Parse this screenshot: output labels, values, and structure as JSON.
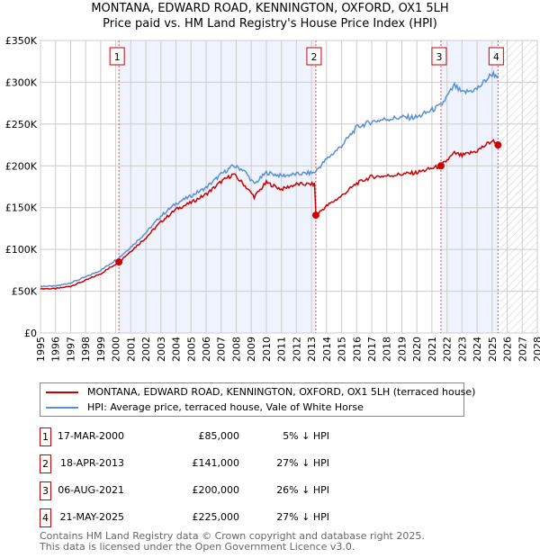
{
  "chart_data": {
    "type": "line",
    "title": "MONTANA, EDWARD ROAD, KENNINGTON, OXFORD, OX1 5LH",
    "subtitle": "Price paid vs. HM Land Registry's House Price Index (HPI)",
    "xlim": [
      1995,
      2028
    ],
    "ylim": [
      0,
      350000
    ],
    "x_ticks": [
      "1995",
      "1996",
      "1997",
      "1998",
      "1999",
      "2000",
      "2001",
      "2002",
      "2003",
      "2004",
      "2005",
      "2006",
      "2007",
      "2008",
      "2009",
      "2010",
      "2011",
      "2012",
      "2013",
      "2014",
      "2015",
      "2016",
      "2017",
      "2018",
      "2019",
      "2020",
      "2021",
      "2022",
      "2023",
      "2024",
      "2025",
      "2026",
      "2027",
      "2028"
    ],
    "y_ticks": [
      {
        "v": 0,
        "label": "£0"
      },
      {
        "v": 50000,
        "label": "£50K"
      },
      {
        "v": 100000,
        "label": "£100K"
      },
      {
        "v": 150000,
        "label": "£150K"
      },
      {
        "v": 200000,
        "label": "£200K"
      },
      {
        "v": 250000,
        "label": "£250K"
      },
      {
        "v": 300000,
        "label": "£300K"
      },
      {
        "v": 350000,
        "label": "£350K"
      }
    ],
    "grid": true,
    "legend_placement": "below",
    "series": [
      {
        "name": "MONTANA, EDWARD ROAD, KENNINGTON, OXFORD, OX1 5LH (terraced house)",
        "color": "#cc0000",
        "x": [
          1995,
          1996,
          1997,
          1998,
          1999,
          2000.2,
          2001,
          2002,
          2003,
          2004,
          2005,
          2006,
          2007,
          2007.8,
          2008.5,
          2009.2,
          2010,
          2011,
          2012,
          2013.2,
          2013.3,
          2014,
          2015,
          2016,
          2017,
          2018,
          2019,
          2020,
          2021.6,
          2022.5,
          2023,
          2024,
          2025,
          2025.4
        ],
        "y": [
          53000,
          53000,
          56000,
          63000,
          71000,
          85000,
          98000,
          114000,
          133000,
          148000,
          156000,
          166000,
          181000,
          190000,
          178000,
          163000,
          180000,
          172000,
          178000,
          178000,
          141000,
          152000,
          164000,
          179000,
          187000,
          188000,
          190000,
          192000,
          200000,
          215000,
          212000,
          218000,
          230000,
          225000
        ]
      },
      {
        "name": "HPI: Average price, terraced house, Vale of White Horse",
        "color": "#5b8fd4",
        "x": [
          1995,
          1996,
          1997,
          1998,
          1999,
          2000.2,
          2001,
          2002,
          2003,
          2004,
          2005,
          2006,
          2007,
          2007.8,
          2008.5,
          2009.2,
          2010,
          2011,
          2012,
          2013.2,
          2014,
          2015,
          2016,
          2017,
          2018,
          2019,
          2020,
          2021.6,
          2022.5,
          2023,
          2024,
          2025,
          2025.4
        ],
        "y": [
          56000,
          56000,
          60000,
          67000,
          75000,
          90000,
          103000,
          120000,
          140000,
          155000,
          164000,
          174000,
          190000,
          200000,
          195000,
          178000,
          192000,
          188000,
          190000,
          192000,
          208000,
          224000,
          246000,
          253000,
          256000,
          258000,
          258000,
          272000,
          296000,
          287000,
          292000,
          310000,
          308000
        ]
      }
    ],
    "sales": [
      {
        "label": "1",
        "x": 2000.21,
        "y": 85000,
        "date": "17-MAR-2000",
        "price": "£85,000",
        "hpi": "5% ↓ HPI"
      },
      {
        "label": "2",
        "x": 2013.29,
        "y": 141000,
        "date": "18-APR-2013",
        "price": "£141,000",
        "hpi": "27% ↓ HPI"
      },
      {
        "label": "3",
        "x": 2021.6,
        "y": 200000,
        "date": "06-AUG-2021",
        "price": "£200,000",
        "hpi": "26% ↓ HPI"
      },
      {
        "label": "4",
        "x": 2025.39,
        "y": 225000,
        "date": "21-MAY-2025",
        "price": "£225,000",
        "hpi": "27% ↓ HPI"
      }
    ],
    "forecast_start": 2025.5
  },
  "footer": {
    "line1": "Contains HM Land Registry data © Crown copyright and database right 2025.",
    "line2": "This data is licensed under the Open Government Licence v3.0."
  }
}
